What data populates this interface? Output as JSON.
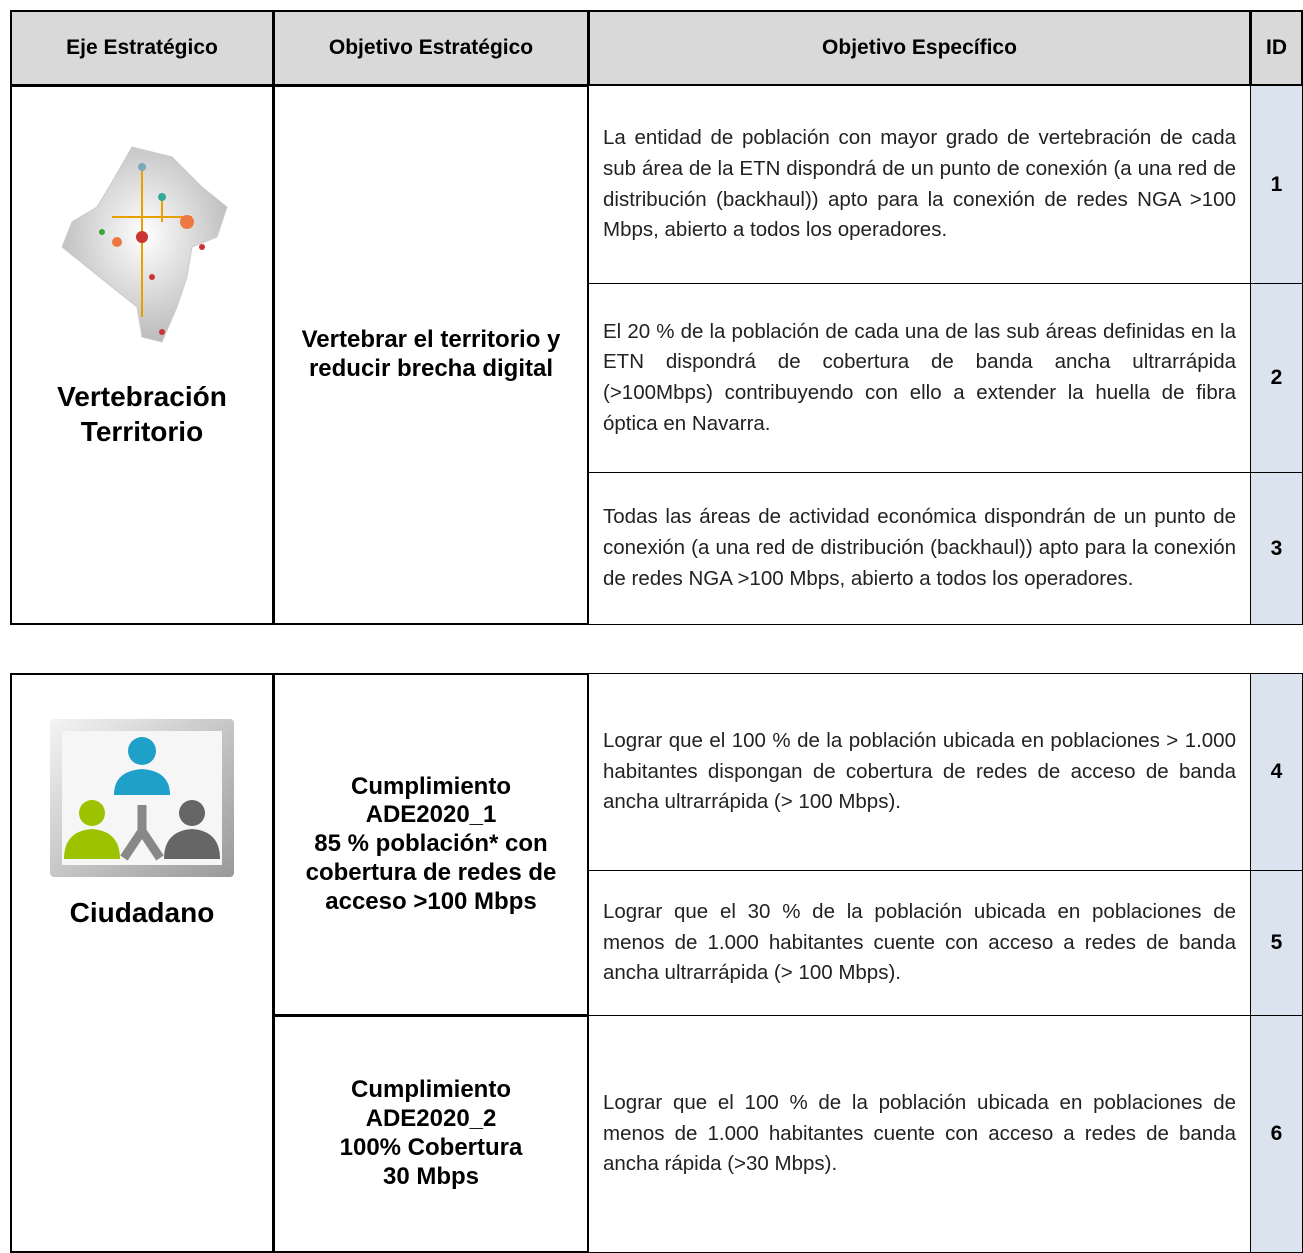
{
  "table_1": {
    "headers": [
      "Eje Estratégico",
      "Objetivo Estratégico",
      "Objetivo Específico",
      "ID"
    ],
    "eje": "Vertebración\nTerritorio",
    "objetivo_estrategico": "Vertebrar el territorio y\nreducir brecha digital",
    "rows": [
      {
        "objetivo_especifico": "La entidad de población con mayor grado de vertebración de cada sub área de la ETN dispondrá de un punto de conexión (a una red de distribución (backhaul)) apto para la conexión de redes NGA >100 Mbps, abierto a todos los operadores.",
        "id": 1
      },
      {
        "objetivo_especifico": "El 20 % de la población de cada una de las sub áreas definidas en la ETN dispondrá de cobertura de banda ancha ultrarrápida (>100Mbps) contribuyendo con ello a extender la huella de fibra óptica en Navarra.",
        "id": 2
      },
      {
        "objetivo_especifico": "Todas las áreas de actividad económica dispondrán de un punto de conexión (a una red de distribución (backhaul)) apto para la conexión de redes NGA >100 Mbps, abierto a todos los operadores.",
        "id": 3
      }
    ]
  },
  "table_2": {
    "eje": "Ciudadano",
    "objetivos_estrategicos": [
      "Cumplimiento\nADE2020_1\n85 % población* con\ncobertura de redes de\nacceso >100 Mbps",
      "Cumplimiento\nADE2020_2\n100% Cobertura\n30 Mbps"
    ],
    "rows": [
      {
        "objetivo_especifico": "Lograr que el 100 % de la población ubicada en poblaciones > 1.000 habitantes dispongan de cobertura de redes de acceso de banda ancha ultrarrápida (> 100 Mbps).",
        "id": 4
      },
      {
        "objetivo_especifico": "Lograr que el 30 % de la población ubicada en poblaciones de menos de 1.000 habitantes cuente con acceso a redes de banda ancha ultrarrápida (> 100 Mbps).",
        "id": 5
      },
      {
        "objetivo_especifico": "Lograr que el 100 % de la población ubicada en poblaciones de menos de 1.000 habitantes cuente con acceso a redes de banda ancha rápida (>30 Mbps).",
        "id": 6
      }
    ]
  }
}
